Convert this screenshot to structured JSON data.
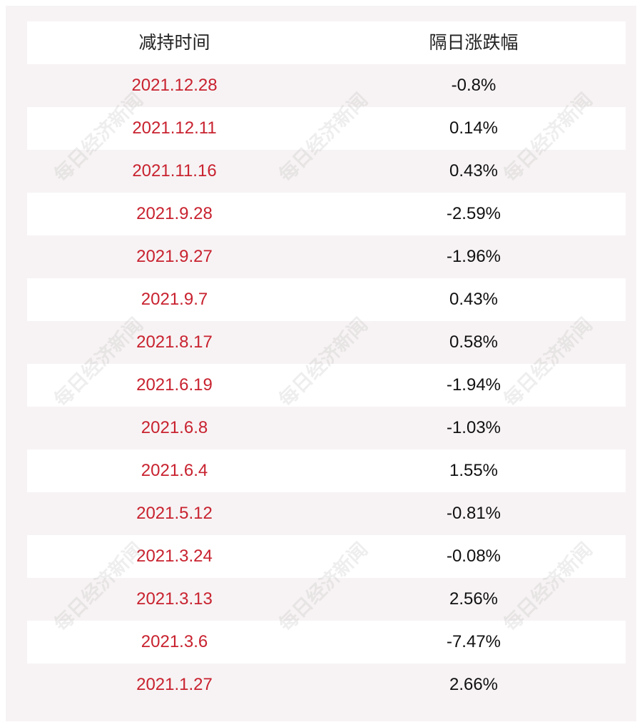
{
  "table": {
    "headers": [
      "减持时间",
      "隔日涨跌幅"
    ],
    "rows": [
      {
        "date": "2021.12.28",
        "change": "-0.8%"
      },
      {
        "date": "2021.12.11",
        "change": "0.14%"
      },
      {
        "date": "2021.11.16",
        "change": "0.43%"
      },
      {
        "date": "2021.9.28",
        "change": "-2.59%"
      },
      {
        "date": "2021.9.27",
        "change": "-1.96%"
      },
      {
        "date": "2021.9.7",
        "change": "0.43%"
      },
      {
        "date": "2021.8.17",
        "change": "0.58%"
      },
      {
        "date": "2021.6.19",
        "change": "-1.94%"
      },
      {
        "date": "2021.6.8",
        "change": "-1.03%"
      },
      {
        "date": "2021.6.4",
        "change": "1.55%"
      },
      {
        "date": "2021.5.12",
        "change": "-0.81%"
      },
      {
        "date": "2021.3.24",
        "change": "-0.08%"
      },
      {
        "date": "2021.3.13",
        "change": "2.56%"
      },
      {
        "date": "2021.3.6",
        "change": "-7.47%"
      },
      {
        "date": "2021.1.27",
        "change": "2.66%"
      }
    ]
  },
  "watermark": "每日经济新闻",
  "colors": {
    "date_text": "#c8222f",
    "panel_background": "#f7f3f4",
    "row_background": "#ffffff"
  }
}
